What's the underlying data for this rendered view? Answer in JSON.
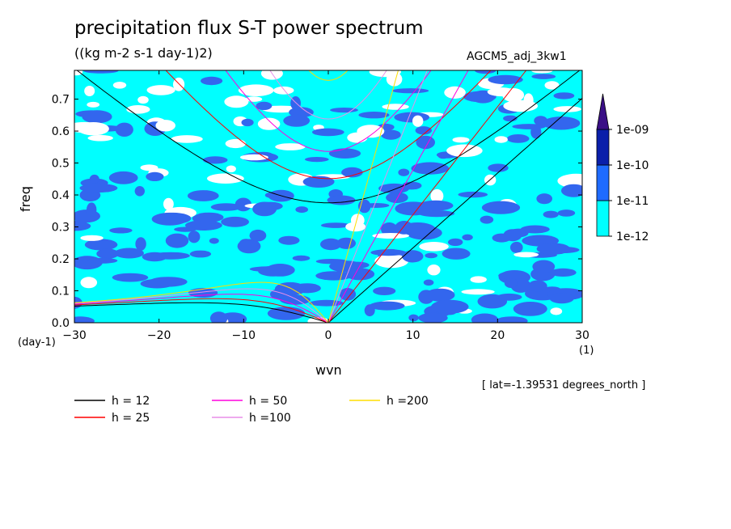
{
  "chart_data": {
    "type": "heatmap",
    "title": "precipitation flux S-T power spectrum",
    "units": "((kg m-2 s-1 day-1)2)",
    "run_name": "AGCM5_adj_3kw1",
    "xlabel": "wvn",
    "ylabel": "freq",
    "x_unit": "(1)",
    "y_unit": "(day-1)",
    "latitude_info": "[ lat=-1.39531 degrees_north ]",
    "xlim": [
      -30,
      30
    ],
    "ylim": [
      0.0,
      0.79
    ],
    "x_ticks": [
      -30,
      -20,
      -10,
      0,
      10,
      20,
      30
    ],
    "x_tick_labels": [
      "−30",
      "−20",
      "−10",
      "0",
      "10",
      "20",
      "30"
    ],
    "y_ticks": [
      0.0,
      0.1,
      0.2,
      0.3,
      0.4,
      0.5,
      0.6,
      0.7
    ],
    "y_tick_labels": [
      "0.0",
      "0.1",
      "0.2",
      "0.3",
      "0.4",
      "0.5",
      "0.6",
      "0.7"
    ],
    "colorbar": {
      "levels": [
        "1e-12",
        "1e-11",
        "1e-10",
        "1e-09"
      ],
      "colors": [
        "#00ffff",
        "#1e6bff",
        "#0a1faa",
        "#3a0f86"
      ]
    },
    "contour_colors": {
      "low": "#ffffff",
      "mid": "#00ffff",
      "high": "#3366ee"
    },
    "dispersion_curves": [
      {
        "label": "h = 12",
        "h": 12,
        "color": "#000000"
      },
      {
        "label": "h = 25",
        "h": 25,
        "color": "#ff0000"
      },
      {
        "label": "h = 50",
        "h": 50,
        "color": "#ff00dd"
      },
      {
        "label": "h =100",
        "h": 100,
        "color": "#e88ee8"
      },
      {
        "label": "h =200",
        "h": 200,
        "color": "#ffdd00"
      }
    ]
  }
}
